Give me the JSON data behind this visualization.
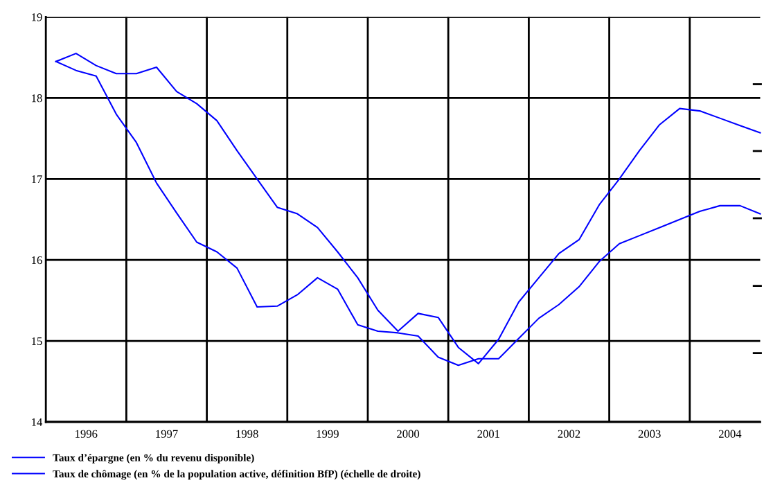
{
  "chart_data": {
    "type": "line",
    "x": [
      1996.125,
      1996.375,
      1996.625,
      1996.875,
      1997.125,
      1997.375,
      1997.625,
      1997.875,
      1998.125,
      1998.375,
      1998.625,
      1998.875,
      1999.125,
      1999.375,
      1999.625,
      1999.875,
      2000.125,
      2000.375,
      2000.625,
      2000.875,
      2001.125,
      2001.375,
      2001.625,
      2001.875,
      2002.125,
      2002.375,
      2002.625,
      2002.875,
      2003.125,
      2003.375,
      2003.625,
      2003.875,
      2004.125,
      2004.375,
      2004.625,
      2004.875
    ],
    "series": [
      {
        "name": "Taux d’épargne (en % du revenu disponible)",
        "color": "#0000ff",
        "values": [
          18.45,
          18.55,
          18.4,
          18.3,
          18.3,
          18.38,
          18.08,
          17.93,
          17.72,
          17.35,
          17.0,
          16.65,
          16.57,
          16.4,
          16.1,
          15.78,
          15.38,
          15.12,
          15.34,
          15.29,
          14.92,
          14.72,
          15.02,
          15.48,
          15.78,
          16.08,
          16.25,
          16.68,
          17.0,
          17.35,
          17.67,
          17.87,
          17.84,
          17.75,
          17.66,
          17.57
        ]
      },
      {
        "name": "Taux de chômage (en % de la population active, définition BfP) (échelle de droite)",
        "color": "#0000ff",
        "values": [
          18.45,
          18.34,
          18.27,
          17.8,
          17.45,
          16.95,
          16.58,
          16.22,
          16.1,
          15.9,
          15.42,
          15.43,
          15.57,
          15.78,
          15.64,
          15.2,
          15.12,
          15.1,
          15.06,
          14.8,
          14.7,
          14.78,
          14.78,
          15.03,
          15.28,
          15.45,
          15.67,
          15.98,
          16.2,
          16.3,
          16.4,
          16.5,
          16.6,
          16.67,
          16.67,
          16.57
        ]
      }
    ],
    "xlim": [
      1996,
      2004.875
    ],
    "xticks": [
      {
        "value": 1996.5,
        "label": "1996"
      },
      {
        "value": 1997,
        "label": null
      },
      {
        "value": 1997.5,
        "label": "1997"
      },
      {
        "value": 1998,
        "label": null
      },
      {
        "value": 1998.5,
        "label": "1998"
      },
      {
        "value": 1999,
        "label": null
      },
      {
        "value": 1999.5,
        "label": "1999"
      },
      {
        "value": 2000,
        "label": null
      },
      {
        "value": 2000.5,
        "label": "2000"
      },
      {
        "value": 2001,
        "label": null
      },
      {
        "value": 2001.5,
        "label": "2001"
      },
      {
        "value": 2002,
        "label": null
      },
      {
        "value": 2002.5,
        "label": "2002"
      },
      {
        "value": 2003,
        "label": null
      },
      {
        "value": 2003.5,
        "label": "2003"
      },
      {
        "value": 2004,
        "label": null
      },
      {
        "value": 2004.5,
        "label": "2004"
      }
    ],
    "ylim": [
      14,
      19
    ],
    "yticks": [
      14,
      15,
      16,
      17,
      18,
      19
    ],
    "grid": true,
    "legend": "bottom",
    "marker": "none",
    "line_style": "solid"
  }
}
